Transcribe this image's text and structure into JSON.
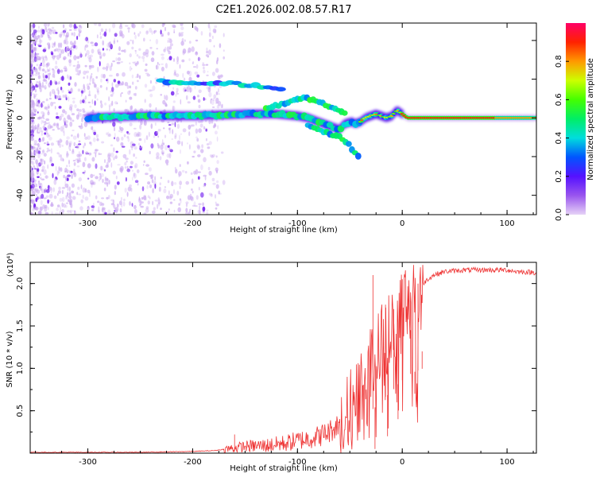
{
  "title": "C2E1.2026.002.08.57.R17",
  "chart_data": [
    {
      "type": "heatmap",
      "name": "spectrogram",
      "xlabel": "Height of straight line (km)",
      "ylabel": "Frequency (Hz)",
      "xlim": [
        -355,
        128
      ],
      "ylim": [
        -50,
        49
      ],
      "xticks": [
        -300,
        -200,
        -100,
        0,
        100
      ],
      "xtick_labels": [
        "-300",
        "-200",
        "-100",
        "0",
        "100"
      ],
      "yticks": [
        -40,
        -20,
        0,
        20,
        40
      ],
      "ytick_labels": [
        "-40",
        "-20",
        "0",
        "20",
        "40"
      ],
      "colorbar": {
        "label": "Normalized spectral amplitude",
        "range": [
          0,
          1
        ],
        "ticks": [
          0.0,
          0.2,
          0.4,
          0.6,
          0.8
        ],
        "tick_labels": [
          "0.0",
          "0.2",
          "0.4",
          "0.6",
          "0.8"
        ]
      },
      "main_tone_track": [
        [
          -300,
          0
        ],
        [
          -250,
          1
        ],
        [
          -200,
          1
        ],
        [
          -150,
          2
        ],
        [
          -120,
          2
        ],
        [
          -100,
          1
        ],
        [
          -90,
          0
        ],
        [
          -80,
          -2
        ],
        [
          -70,
          -4
        ],
        [
          -60,
          -6
        ],
        [
          -55,
          -3
        ],
        [
          -48,
          -2
        ],
        [
          -45,
          -3
        ],
        [
          -40,
          -2
        ],
        [
          -35,
          0
        ],
        [
          -30,
          1
        ],
        [
          -25,
          2
        ],
        [
          -20,
          1
        ],
        [
          -15,
          0
        ],
        [
          -10,
          1
        ],
        [
          -5,
          4
        ],
        [
          0,
          2
        ],
        [
          5,
          0
        ],
        [
          10,
          0
        ],
        [
          50,
          0
        ],
        [
          100,
          0
        ],
        [
          128,
          0
        ]
      ],
      "upper_branch": [
        [
          -130,
          5
        ],
        [
          -115,
          7
        ],
        [
          -100,
          10
        ],
        [
          -90,
          10
        ],
        [
          -80,
          8
        ],
        [
          -70,
          6
        ],
        [
          -60,
          4
        ],
        [
          -55,
          2
        ]
      ],
      "lower_branch": [
        [
          -90,
          -4
        ],
        [
          -80,
          -6
        ],
        [
          -70,
          -8
        ],
        [
          -60,
          -10
        ],
        [
          -52,
          -13
        ],
        [
          -47,
          -17
        ],
        [
          -42,
          -20
        ]
      ],
      "sideband_tone_20hz": [
        [
          -230,
          19
        ],
        [
          -220,
          18
        ],
        [
          -185,
          18
        ],
        [
          -165,
          18
        ],
        [
          -130,
          16
        ],
        [
          -115,
          15
        ]
      ]
    },
    {
      "type": "line",
      "name": "snr",
      "xlabel": "Height of straight line (km)",
      "ylabel": "SNR (10 * v/v)",
      "y_multiplier": "(x10⁴)",
      "xlim": [
        -355,
        128
      ],
      "ylim": [
        0,
        2.25
      ],
      "xticks": [
        -300,
        -200,
        -100,
        0,
        100
      ],
      "xtick_labels": [
        "-300",
        "-200",
        "-100",
        "0",
        "100"
      ],
      "yticks": [
        0.5,
        1.0,
        1.5,
        2.0
      ],
      "ytick_labels": [
        "0.5",
        "1.0",
        "1.5",
        "2.0"
      ],
      "series": [
        {
          "name": "SNR",
          "color": "#ee3333",
          "envelope": [
            [
              -355,
              0.01
            ],
            [
              -300,
              0.01
            ],
            [
              -250,
              0.01
            ],
            [
              -200,
              0.02
            ],
            [
              -180,
              0.03
            ],
            [
              -160,
              0.06
            ],
            [
              -150,
              0.08
            ],
            [
              -130,
              0.09
            ],
            [
              -110,
              0.12
            ],
            [
              -100,
              0.15
            ],
            [
              -90,
              0.17
            ],
            [
              -80,
              0.2
            ],
            [
              -70,
              0.25
            ],
            [
              -60,
              0.35
            ],
            [
              -50,
              0.5
            ],
            [
              -45,
              0.6
            ],
            [
              -40,
              0.75
            ],
            [
              -35,
              0.9
            ],
            [
              -30,
              1.0
            ],
            [
              -25,
              1.1
            ],
            [
              -20,
              1.25
            ],
            [
              -15,
              1.35
            ],
            [
              -10,
              1.45
            ],
            [
              -5,
              1.6
            ],
            [
              0,
              1.72
            ],
            [
              5,
              1.82
            ],
            [
              10,
              1.9
            ],
            [
              15,
              1.95
            ],
            [
              20,
              2.0
            ],
            [
              25,
              2.06
            ],
            [
              30,
              2.1
            ],
            [
              40,
              2.14
            ],
            [
              50,
              2.15
            ],
            [
              60,
              2.16
            ],
            [
              80,
              2.16
            ],
            [
              100,
              2.16
            ],
            [
              110,
              2.14
            ],
            [
              128,
              2.13
            ]
          ],
          "spikes": [
            [
              -160,
              0.22
            ],
            [
              -28,
              2.1
            ],
            [
              -26,
              0.05
            ],
            [
              -16,
              1.75
            ],
            [
              -14,
              0.2
            ],
            [
              -8,
              1.7
            ],
            [
              -4,
              0.4
            ],
            [
              0,
              2.05
            ],
            [
              8,
              1.45
            ],
            [
              12,
              0.7
            ],
            [
              15,
              2.0
            ],
            [
              19,
              1.2
            ]
          ]
        }
      ]
    }
  ]
}
